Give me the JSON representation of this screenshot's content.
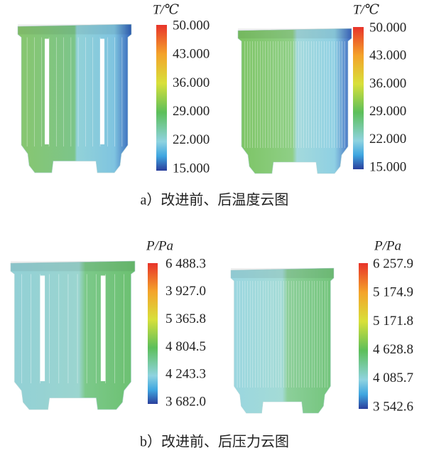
{
  "panels": [
    {
      "title": "T/℃",
      "ticks": [
        "50.000",
        "43.000",
        "36.000",
        "29.000",
        "22.000",
        "15.000"
      ]
    },
    {
      "title": "T/℃",
      "ticks": [
        "50.000",
        "43.000",
        "36.000",
        "29.000",
        "22.000",
        "15.000"
      ]
    },
    {
      "title": "P/Pa",
      "ticks": [
        "6 488.3",
        "3 927.0",
        "5 365.8",
        "4 804.5",
        "4 243.3",
        "3 682.0"
      ]
    },
    {
      "title": "P/Pa",
      "ticks": [
        "6 257.9",
        "5 174.9",
        "5 171.8",
        "4 628.8",
        "4 085.7",
        "3 542.6"
      ]
    }
  ],
  "captions": [
    "a）改进前、后温度云图",
    "b）改进前、后压力云图"
  ]
}
